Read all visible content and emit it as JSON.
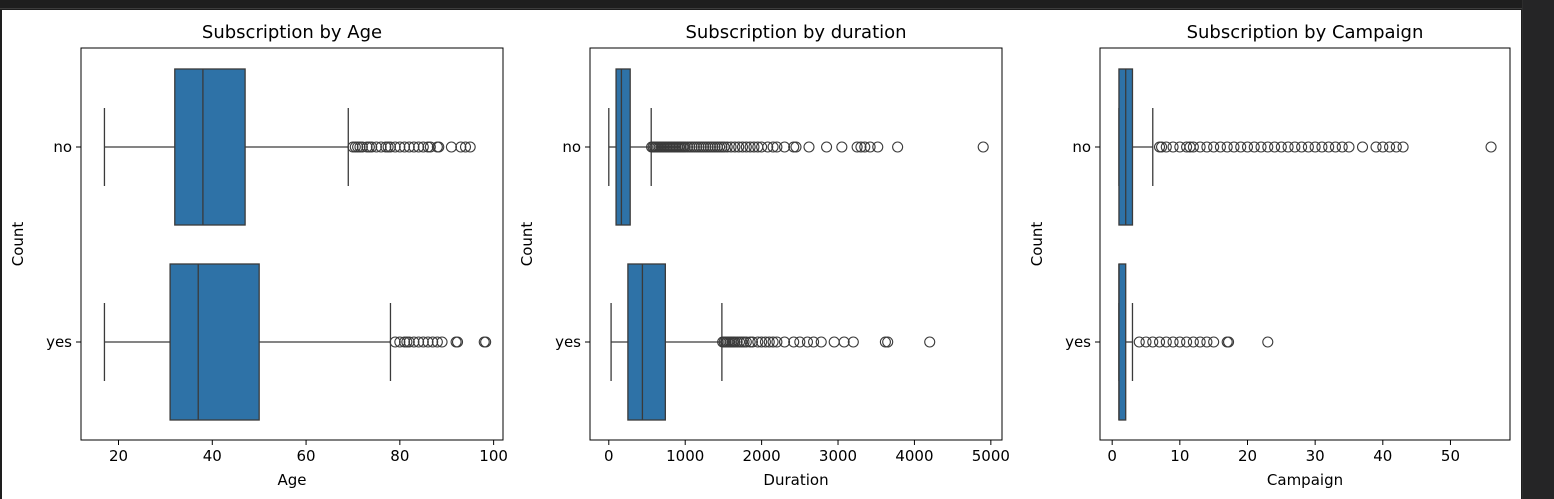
{
  "colors": {
    "box_fill": "#2e72a7",
    "outline": "#3a3a3a",
    "background": "#ffffff",
    "page_background": "#1e1e1e"
  },
  "chart_data": [
    {
      "type": "boxplot",
      "orientation": "horizontal",
      "title": "Subscription by Age",
      "xlabel": "Age",
      "ylabel": "Count",
      "xlim": [
        12,
        102
      ],
      "xticks": [
        20,
        40,
        60,
        80,
        100
      ],
      "categories": [
        "no",
        "yes"
      ],
      "grid": false,
      "series": [
        {
          "category": "no",
          "whisker_low": 17,
          "q1": 32,
          "median": 38,
          "q3": 47,
          "whisker_high": 69,
          "outliers": [
            70,
            70.5,
            71,
            71.5,
            72,
            73,
            73.5,
            74,
            75,
            76,
            77,
            77.5,
            78,
            79,
            80,
            81,
            82,
            83,
            84,
            85,
            86,
            86.5,
            88,
            88.3,
            91,
            93,
            94,
            95
          ]
        },
        {
          "category": "yes",
          "whisker_low": 17,
          "q1": 31,
          "median": 37,
          "q3": 50,
          "whisker_high": 78,
          "outliers": [
            79,
            80,
            81,
            81.5,
            82,
            83,
            84,
            85,
            86,
            87,
            88,
            89,
            92,
            92.3,
            98,
            98.3
          ]
        }
      ]
    },
    {
      "type": "boxplot",
      "orientation": "horizontal",
      "title": "Subscription by duration",
      "xlabel": "Duration",
      "ylabel": "Count",
      "xlim": [
        -246,
        5146
      ],
      "xticks": [
        0,
        1000,
        2000,
        3000,
        4000,
        5000
      ],
      "categories": [
        "no",
        "yes"
      ],
      "grid": false,
      "series": [
        {
          "category": "no",
          "whisker_low": 0,
          "q1": 95,
          "median": 165,
          "q3": 280,
          "whisker_high": 555,
          "outliers": [
            560,
            580,
            600,
            620,
            640,
            660,
            680,
            700,
            720,
            740,
            760,
            780,
            800,
            820,
            840,
            860,
            880,
            900,
            920,
            940,
            960,
            980,
            1000,
            1030,
            1060,
            1090,
            1120,
            1150,
            1180,
            1210,
            1240,
            1270,
            1300,
            1330,
            1360,
            1390,
            1420,
            1450,
            1480,
            1510,
            1550,
            1600,
            1650,
            1700,
            1750,
            1800,
            1850,
            1900,
            1950,
            2000,
            2080,
            2150,
            2200,
            2300,
            2420,
            2450,
            2620,
            2850,
            3050,
            3250,
            3300,
            3350,
            3420,
            3520,
            3780,
            4900
          ]
        },
        {
          "category": "yes",
          "whisker_low": 30,
          "q1": 250,
          "median": 440,
          "q3": 740,
          "whisker_high": 1480,
          "outliers": [
            1490,
            1510,
            1530,
            1550,
            1570,
            1590,
            1610,
            1630,
            1650,
            1680,
            1710,
            1740,
            1770,
            1800,
            1850,
            1880,
            1950,
            2000,
            2050,
            2100,
            2150,
            2200,
            2300,
            2420,
            2500,
            2600,
            2680,
            2780,
            2950,
            3080,
            3200,
            3620,
            3650,
            4200
          ]
        }
      ]
    },
    {
      "type": "boxplot",
      "orientation": "horizontal",
      "title": "Subscription by Campaign",
      "xlabel": "Campaign",
      "ylabel": "Count",
      "xlim": [
        -1.8,
        58.8
      ],
      "xticks": [
        0,
        10,
        20,
        30,
        40,
        50
      ],
      "categories": [
        "no",
        "yes"
      ],
      "grid": false,
      "series": [
        {
          "category": "no",
          "whisker_low": 1,
          "q1": 1,
          "median": 2,
          "q3": 3,
          "whisker_high": 6,
          "outliers": [
            7,
            7.3,
            8,
            9,
            10,
            11,
            11.5,
            12,
            13,
            14,
            15,
            16,
            17,
            18,
            19,
            20,
            21,
            22,
            23,
            24,
            25,
            26,
            27,
            28,
            29,
            30,
            31,
            32,
            33,
            34,
            35,
            37,
            39,
            40,
            41,
            42,
            43,
            56
          ]
        },
        {
          "category": "yes",
          "whisker_low": 1,
          "q1": 1,
          "median": 1,
          "q3": 2,
          "whisker_high": 3,
          "outliers": [
            4,
            5,
            6,
            7,
            8,
            9,
            10,
            11,
            12,
            13,
            14,
            15,
            17,
            17.2,
            23
          ]
        }
      ]
    }
  ]
}
